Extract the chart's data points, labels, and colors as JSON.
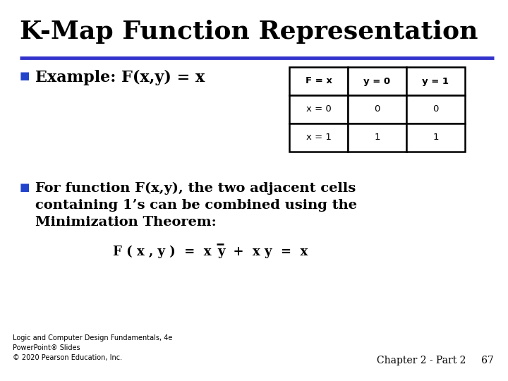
{
  "title": "K-Map Function Representation",
  "title_fontsize": 26,
  "title_fontweight": "bold",
  "bg_color": "#ffffff",
  "title_color": "#000000",
  "blue_line_color": "#3333cc",
  "bullet_color": "#2244cc",
  "bullet1_text": "Example: F(x,y) = x",
  "bullet2_line1": "For function F(x,y), the two adjacent cells",
  "bullet2_line2": "containing 1’s can be combined using the",
  "bullet2_line3": "Minimization Theorem:",
  "table_header": [
    "F = x",
    "y = 0",
    "y = 1"
  ],
  "table_row1": [
    "x = 0",
    "0",
    "0"
  ],
  "table_row2": [
    "x = 1",
    "1",
    "1"
  ],
  "footer_left": "Logic and Computer Design Fundamentals, 4e\nPowerPoint® Slides\n© 2020 Pearson Education, Inc.",
  "footer_right": "Chapter 2 - Part 2     67",
  "footer_fontsize": 7
}
